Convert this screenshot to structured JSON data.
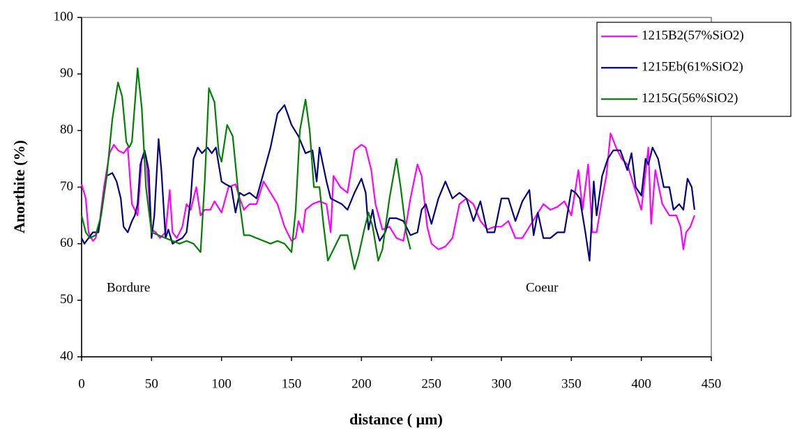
{
  "chart_data": {
    "type": "line",
    "x_label": "distance ( µm)",
    "y_label": "Anorthite (%)",
    "annotations": [
      "Bordure",
      "Coeur"
    ],
    "xlim": [
      0,
      450
    ],
    "xticks": [
      0,
      50,
      100,
      150,
      200,
      250,
      300,
      350,
      400,
      450
    ],
    "ylim": [
      40,
      100
    ],
    "yticks": [
      40,
      50,
      60,
      70,
      80,
      90,
      100
    ],
    "legend": "top-right",
    "series": [
      {
        "name": "1215B2(57%SiO2)",
        "color": "#ff00ff",
        "x": [
          0,
          3,
          5,
          8,
          10,
          13,
          16,
          20,
          23,
          26,
          30,
          33,
          36,
          40,
          43,
          46,
          50,
          53,
          56,
          60,
          63,
          65,
          68,
          72,
          75,
          78,
          82,
          85,
          88,
          92,
          95,
          100,
          105,
          110,
          113,
          116,
          120,
          125,
          130,
          135,
          140,
          145,
          150,
          153,
          155,
          158,
          160,
          165,
          170,
          175,
          178,
          180,
          185,
          190,
          195,
          200,
          203,
          207,
          210,
          215,
          220,
          225,
          230,
          235,
          240,
          243,
          247,
          250,
          255,
          260,
          265,
          270,
          275,
          280,
          285,
          290,
          295,
          300,
          305,
          310,
          315,
          320,
          325,
          330,
          335,
          340,
          345,
          350,
          355,
          358,
          362,
          365,
          368,
          372,
          375,
          378,
          382,
          386,
          390,
          395,
          400,
          405,
          407,
          410,
          415,
          420,
          425,
          428,
          430,
          432,
          435,
          438
        ],
        "values": [
          70.5,
          68,
          62,
          60.5,
          61,
          64,
          70,
          76,
          77.5,
          76.5,
          76,
          77,
          67,
          65,
          75,
          75.5,
          62.5,
          62,
          61,
          62,
          69.5,
          62,
          61,
          63,
          67,
          66,
          70,
          65,
          66,
          66,
          67.5,
          65.5,
          70,
          70.5,
          68,
          66,
          67,
          67,
          71,
          69,
          67,
          63,
          60.5,
          61,
          64,
          62,
          66,
          67,
          67.5,
          67,
          62,
          72,
          70,
          69,
          76.5,
          77.5,
          77,
          73,
          67,
          62.5,
          63,
          61,
          60.5,
          68,
          74,
          72,
          63,
          60,
          59,
          59.5,
          61,
          67,
          68,
          67,
          64,
          62.5,
          63,
          63,
          64,
          61,
          61,
          63,
          65,
          67,
          66,
          66.5,
          67.5,
          65,
          73,
          66,
          74,
          62,
          62,
          68,
          72,
          79.5,
          77,
          75,
          74,
          70,
          66,
          77,
          63.5,
          73,
          67,
          65,
          65,
          63,
          59,
          62,
          63,
          65
        ]
      },
      {
        "name": "1215Eb(61%SiO2)",
        "color": "#000080",
        "x": [
          0,
          2,
          5,
          8,
          12,
          15,
          18,
          22,
          25,
          28,
          30,
          33,
          36,
          38,
          40,
          42,
          45,
          48,
          50,
          52,
          55,
          57,
          60,
          62,
          65,
          68,
          72,
          75,
          78,
          80,
          83,
          86,
          90,
          93,
          96,
          100,
          103,
          107,
          110,
          113,
          116,
          120,
          125,
          130,
          135,
          140,
          145,
          150,
          155,
          160,
          165,
          168,
          170,
          175,
          178,
          182,
          186,
          190,
          195,
          200,
          203,
          205,
          208,
          210,
          213,
          217,
          220,
          225,
          230,
          235,
          240,
          243,
          246,
          250,
          255,
          260,
          265,
          270,
          275,
          280,
          285,
          290,
          295,
          300,
          305,
          310,
          315,
          320,
          323,
          326,
          330,
          335,
          340,
          345,
          350,
          353,
          356,
          360,
          363,
          366,
          368,
          372,
          376,
          380,
          385,
          390,
          393,
          396,
          400,
          403,
          405,
          408,
          412,
          416,
          420,
          423,
          427,
          430,
          433,
          436,
          438
        ],
        "values": [
          61,
          60,
          61,
          62,
          62,
          67,
          72,
          72.5,
          71,
          68,
          63,
          62,
          64,
          65,
          67,
          74,
          76.5,
          73,
          61,
          65,
          78.5,
          73,
          61,
          62.5,
          60,
          60.5,
          61,
          62,
          68,
          75,
          77,
          76,
          77,
          76,
          77,
          71,
          70.5,
          70,
          65.5,
          69,
          68.5,
          69,
          68,
          72.5,
          77,
          83,
          84.5,
          81,
          79,
          76,
          76.5,
          71,
          77,
          71,
          68,
          67.5,
          67,
          66,
          69,
          71.5,
          69,
          62.5,
          66,
          63,
          60.5,
          62,
          64.5,
          64.5,
          64,
          61.5,
          62,
          66,
          67,
          63.5,
          68,
          71,
          68,
          69,
          68,
          64,
          67.5,
          62,
          62,
          68,
          68,
          64,
          67.5,
          69.5,
          61.5,
          65.5,
          61,
          61,
          62,
          62,
          69.5,
          69,
          68,
          62,
          57,
          71,
          65,
          72,
          75,
          76.5,
          76.5,
          73,
          76,
          70,
          68.5,
          75,
          74,
          77,
          75,
          70,
          70,
          66,
          67,
          66,
          71.5,
          70,
          66
        ]
      },
      {
        "name": "1215G(56%SiO2)",
        "color": "#008000",
        "x": [
          0,
          3,
          6,
          10,
          14,
          18,
          22,
          26,
          29,
          32,
          34,
          36,
          40,
          43,
          46,
          50,
          55,
          60,
          65,
          70,
          75,
          80,
          85,
          88,
          91,
          95,
          98,
          100,
          104,
          108,
          112,
          116,
          120,
          125,
          130,
          135,
          140,
          145,
          150,
          153,
          156,
          160,
          163,
          166,
          170,
          173,
          176,
          180,
          185,
          190,
          195,
          198,
          202,
          205,
          208,
          212,
          215,
          220,
          225,
          228,
          232,
          235
        ],
        "values": [
          65,
          62,
          61,
          61.5,
          65,
          72,
          82,
          88.5,
          86,
          78,
          77,
          78,
          91,
          84,
          70,
          62,
          61.5,
          61,
          60.5,
          60,
          60.5,
          60,
          58.5,
          71,
          87.5,
          85,
          76,
          74.5,
          81,
          79,
          69,
          61.5,
          61.5,
          61,
          60.5,
          60,
          60.5,
          60,
          58.5,
          66,
          80,
          85.5,
          80,
          70,
          70,
          63,
          57,
          59,
          61.5,
          61.5,
          55.5,
          58,
          62.5,
          65.5,
          63,
          57,
          59,
          68,
          75,
          70,
          62,
          59
        ]
      }
    ]
  }
}
